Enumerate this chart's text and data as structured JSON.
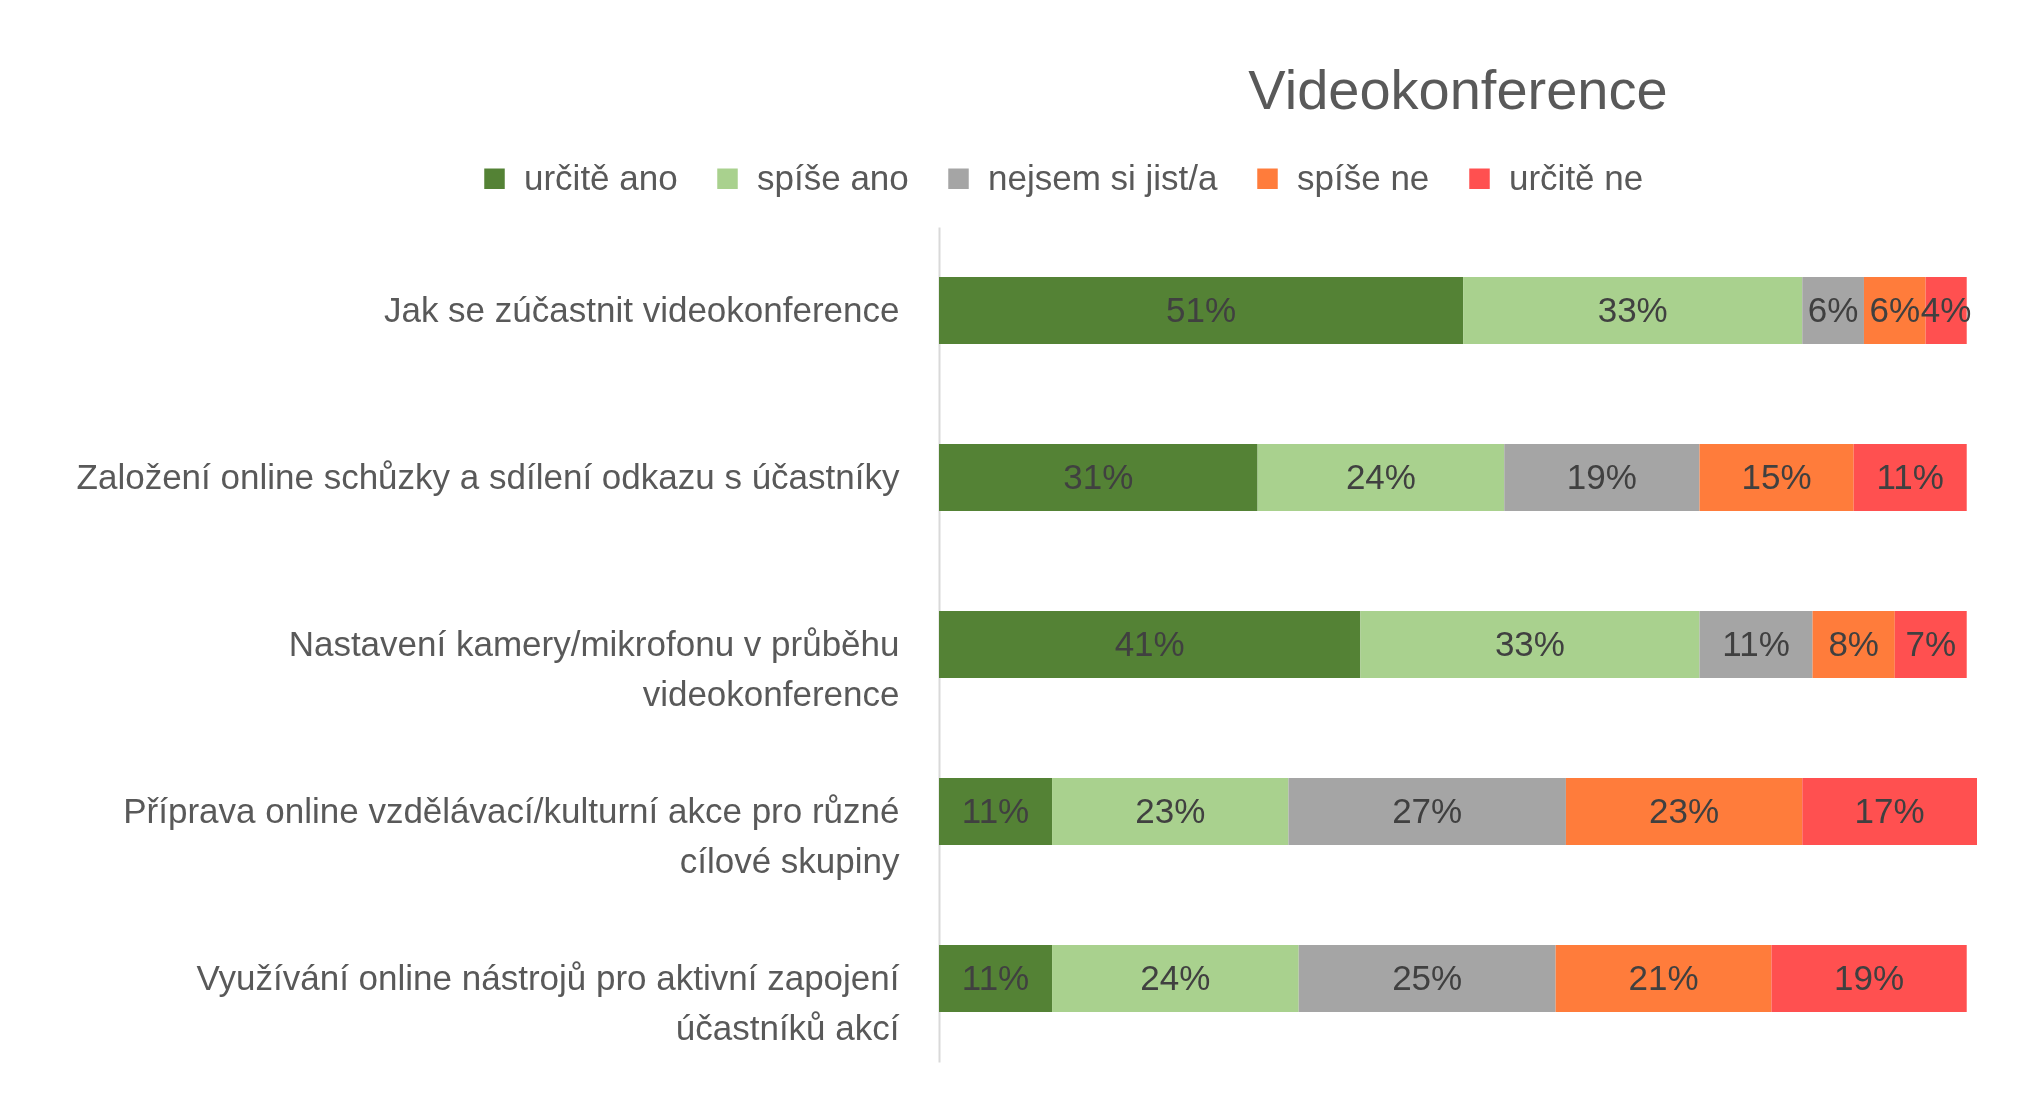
{
  "chart_data": {
    "type": "bar",
    "title": "Videokonference",
    "orientation": "horizontal",
    "stacked": true,
    "legend": "top",
    "categories": [
      "Jak se zúčastnit videokonference",
      "Založení online schůzky a sdílení odkazu s účastníky",
      "Nastavení kamery/mikrofonu v průběhu videokonference",
      "Příprava online vzdělávací/kulturní akce pro různé cílové skupiny",
      "Využívání online nástrojů pro aktivní zapojení účastníků akcí"
    ],
    "series": [
      {
        "name": "určitě ano",
        "color": "#548235",
        "values": [
          51,
          31,
          41,
          11,
          11
        ],
        "value_labels": [
          "51%",
          "31%",
          "41%",
          "11%",
          "11%"
        ]
      },
      {
        "name": "spíše ano",
        "color": "#a9d18e",
        "values": [
          33,
          24,
          33,
          23,
          24
        ],
        "value_labels": [
          "33%",
          "24%",
          "33%",
          "23%",
          "24%"
        ]
      },
      {
        "name": "nejsem si jist/a",
        "color": "#a5a5a5",
        "values": [
          6,
          19,
          11,
          27,
          25
        ],
        "value_labels": [
          "6%",
          "19%",
          "11%",
          "27%",
          "25%"
        ]
      },
      {
        "name": "spíše ne",
        "color": "#ff7c3b",
        "values": [
          6,
          15,
          8,
          23,
          21
        ],
        "value_labels": [
          "6%",
          "15%",
          "8%",
          "23%",
          "21%"
        ]
      },
      {
        "name": "určitě ne",
        "color": "#ff5050",
        "values": [
          4,
          11,
          7,
          17,
          19
        ],
        "value_labels": [
          "4%",
          "11%",
          "7%",
          "17%",
          "19%"
        ]
      }
    ]
  }
}
